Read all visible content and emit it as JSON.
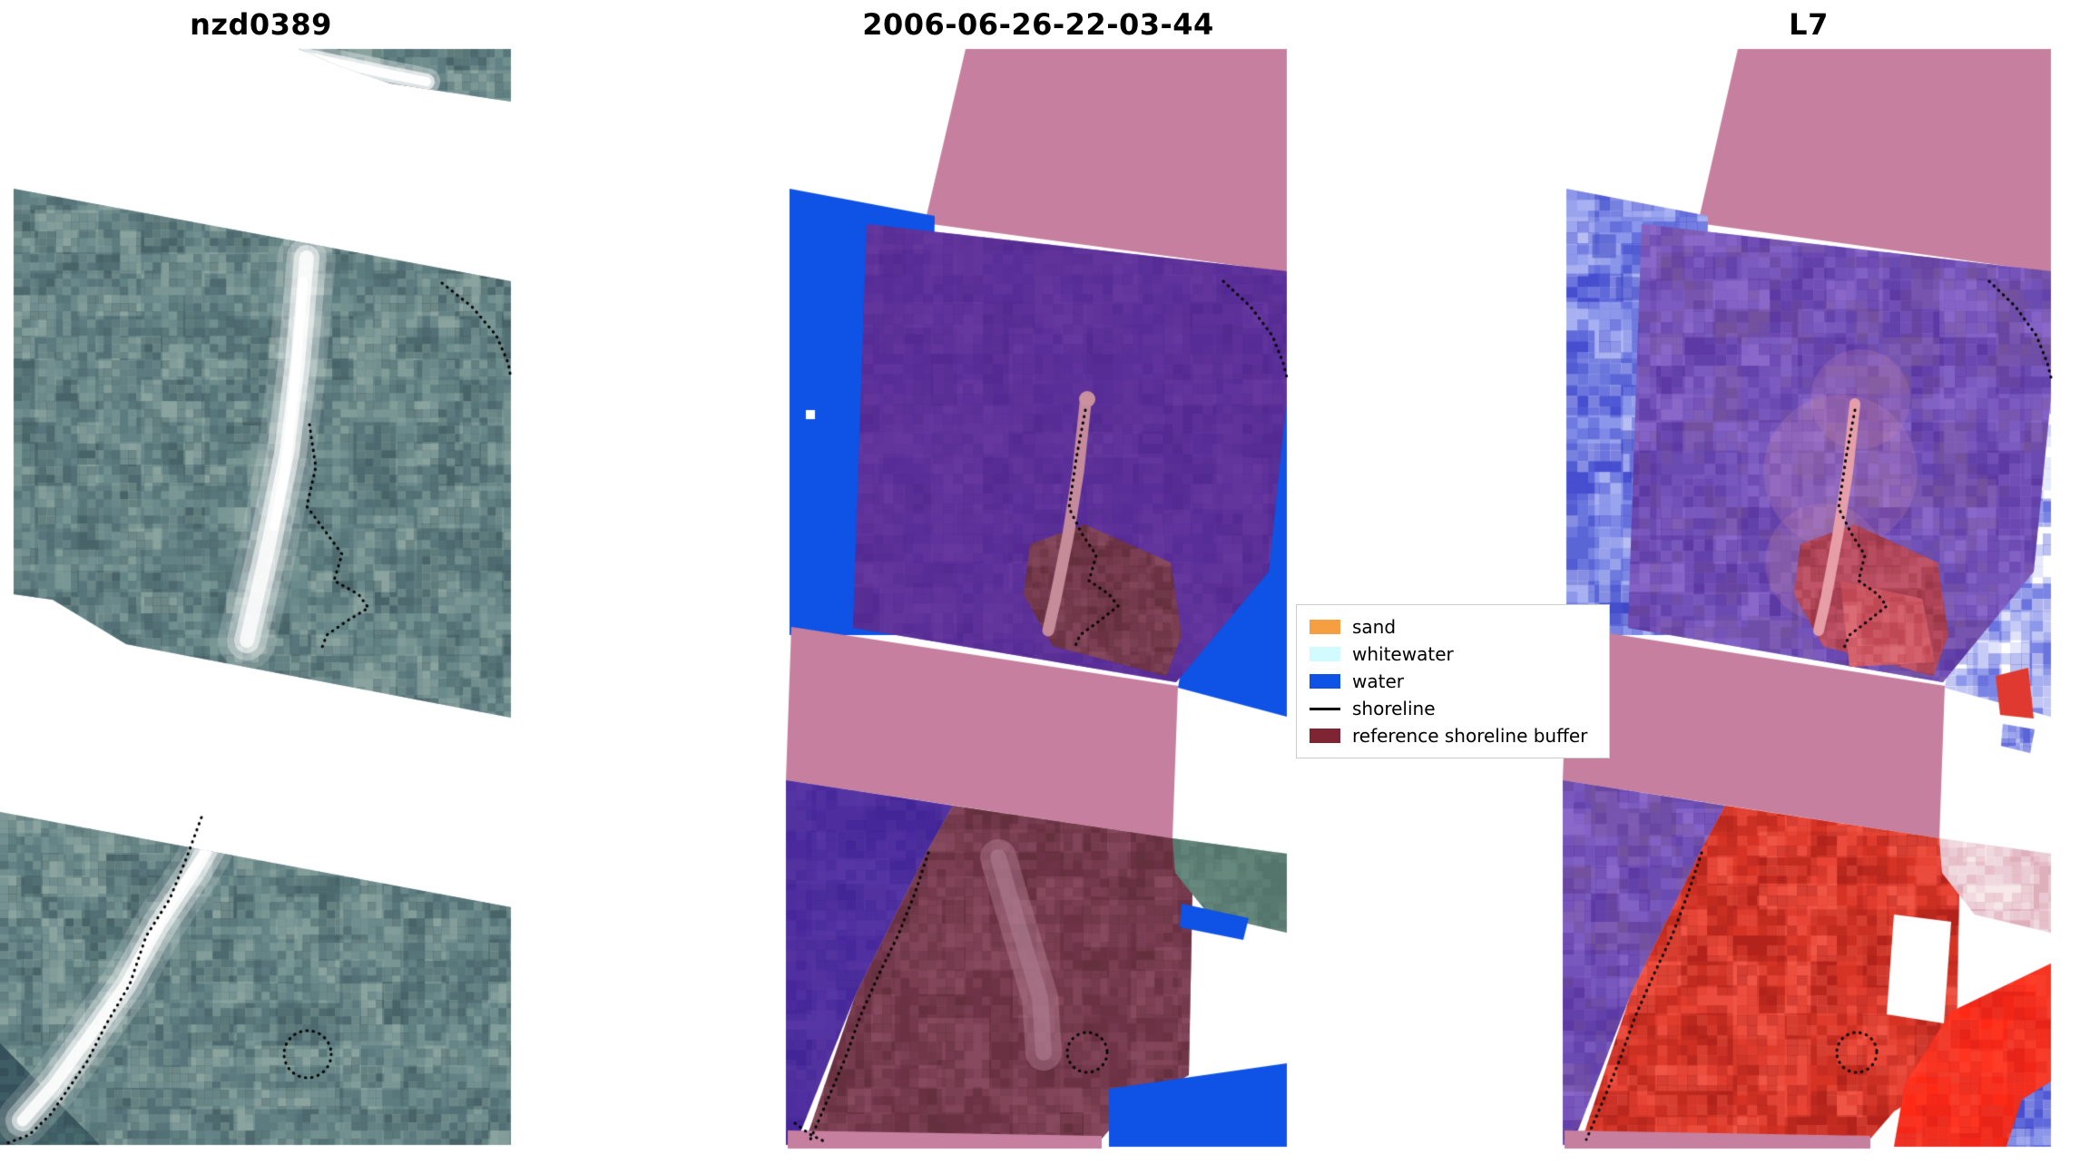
{
  "figure": {
    "background": "#ffffff"
  },
  "panels": [
    {
      "id": "rgb",
      "title": "nzd0389"
    },
    {
      "id": "classification",
      "title": "2006-06-26-22-03-44"
    },
    {
      "id": "l7",
      "title": "L7"
    }
  ],
  "legend": {
    "items": [
      {
        "label": "sand",
        "swatch": "patch",
        "color": "#f59e42"
      },
      {
        "label": "whitewater",
        "swatch": "patch",
        "color": "#d2fbff"
      },
      {
        "label": "water",
        "swatch": "patch",
        "color": "#0f52e6"
      },
      {
        "label": "shoreline",
        "swatch": "line",
        "color": "#000000"
      },
      {
        "label": "reference shoreline buffer",
        "swatch": "patch",
        "color": "#7f2433"
      }
    ]
  },
  "colors": {
    "background": "#ffffff",
    "shoreline": "#000000",
    "beach": "#ffffff",
    "teal": [
      "#5e7c80",
      "#6a8a8b",
      "#527076",
      "#7a9694",
      "#496469",
      "#8aa39f"
    ],
    "teal_dark": [
      "#3f5a60",
      "#486a6e",
      "#35505a"
    ],
    "pink_band": "#c77f9f",
    "water": "#0f52e6",
    "purple": [
      "#5a2f9a",
      "#603499",
      "#542b93",
      "#65389f"
    ],
    "purple_bottom": [
      "#4b2b9e",
      "#53329f",
      "#422696",
      "#5736a4"
    ],
    "salmon": "#c9909d",
    "maroon": [
      "#6f3448",
      "#7c4054",
      "#65303f",
      "#884a5e"
    ],
    "maroon_ridge": "#b37f93",
    "green": [
      "#5d7f74",
      "#54756c",
      "#67897e"
    ],
    "blue_noise": [
      "#5c66d6",
      "#7f8ae6",
      "#9aa4ee",
      "#474fd0",
      "#b8bef2"
    ],
    "blue_dark_blob": "#3a42c4",
    "blue_white": [
      "#8f98ea",
      "#ffffff",
      "#c7cdf6",
      "#6a74de"
    ],
    "purple_noise": [
      "#6b4cb2",
      "#7c5bc0",
      "#5d3aa4",
      "#8a68ca",
      "#74519e"
    ],
    "pink_haze": "#d98fae",
    "red_noise": [
      "#d63426",
      "#c22c20",
      "#e84436",
      "#b3241c",
      "#f05444"
    ],
    "red_bright": [
      "#ff2a16",
      "#f23c2c",
      "#ff3c28",
      "#e82418"
    ],
    "light_pink": [
      "#eccdd4",
      "#f7e8ea",
      "#dfb0bc"
    ],
    "red_accent": "#e03a30",
    "red_patch": [
      "#cf5a66",
      "#c04855",
      "#da6a74"
    ],
    "red_upper": [
      "#b04458",
      "#c05468",
      "#9c3848"
    ],
    "streak_l7": "#e9a2aa"
  }
}
